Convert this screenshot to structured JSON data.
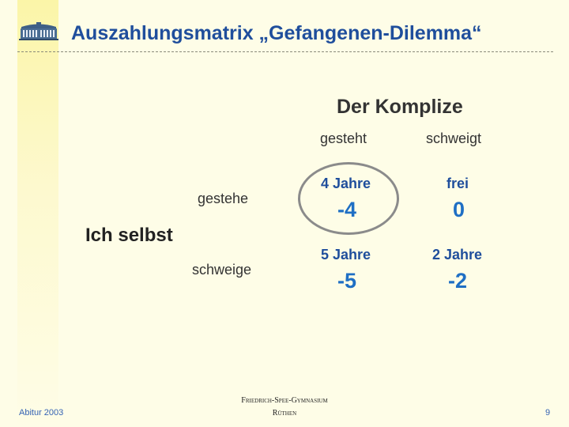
{
  "slide": {
    "title": "Auszahlungsmatrix „Gefangenen-Dilemma“"
  },
  "matrix": {
    "column_player": "Der Komplize",
    "columns": [
      "gesteht",
      "schweigt"
    ],
    "row_player": "Ich selbst",
    "rows": [
      "gestehe",
      "schweige"
    ],
    "cells": [
      [
        {
          "label": "4 Jahre",
          "payoff": "-4"
        },
        {
          "label": "frei",
          "payoff": "0"
        }
      ],
      [
        {
          "label": "5 Jahre",
          "payoff": "-5"
        },
        {
          "label": "2 Jahre",
          "payoff": "-2"
        }
      ]
    ]
  },
  "footer": {
    "left": "Abitur 2003",
    "school_line1": "Friedrich-Spee-Gymnasium",
    "school_line2": "Rüthen",
    "page_number": "9"
  },
  "colors": {
    "title": "#1f4e9c",
    "payoff": "#1f6fc4",
    "background": "#fefde7"
  }
}
